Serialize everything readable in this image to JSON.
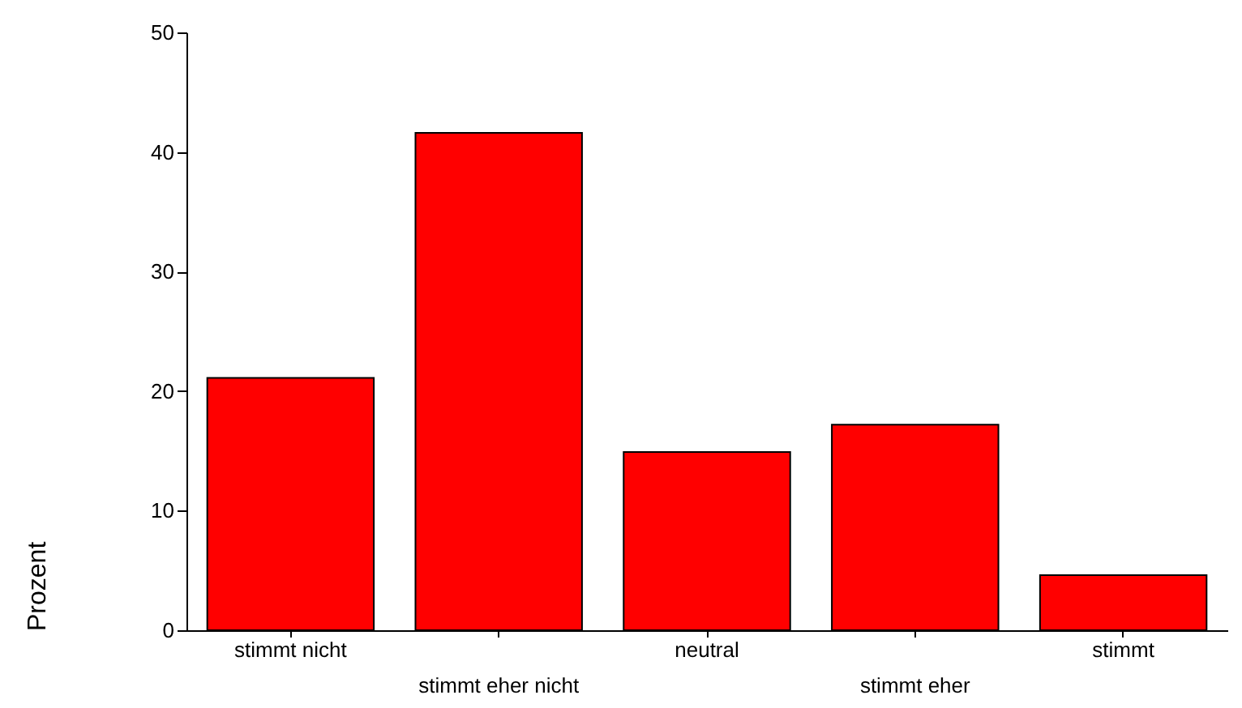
{
  "chart_data": {
    "type": "bar",
    "ylabel": "Prozent",
    "categories": [
      "stimmt nicht",
      "stimmt eher nicht",
      "neutral",
      "stimmt eher",
      "stimmt"
    ],
    "values": [
      21.1,
      41.6,
      14.9,
      17.2,
      4.6
    ],
    "color": "#ff0000",
    "ylim": [
      0,
      50
    ],
    "yticks": [
      0,
      10,
      20,
      30,
      40,
      50
    ],
    "grid": false
  }
}
